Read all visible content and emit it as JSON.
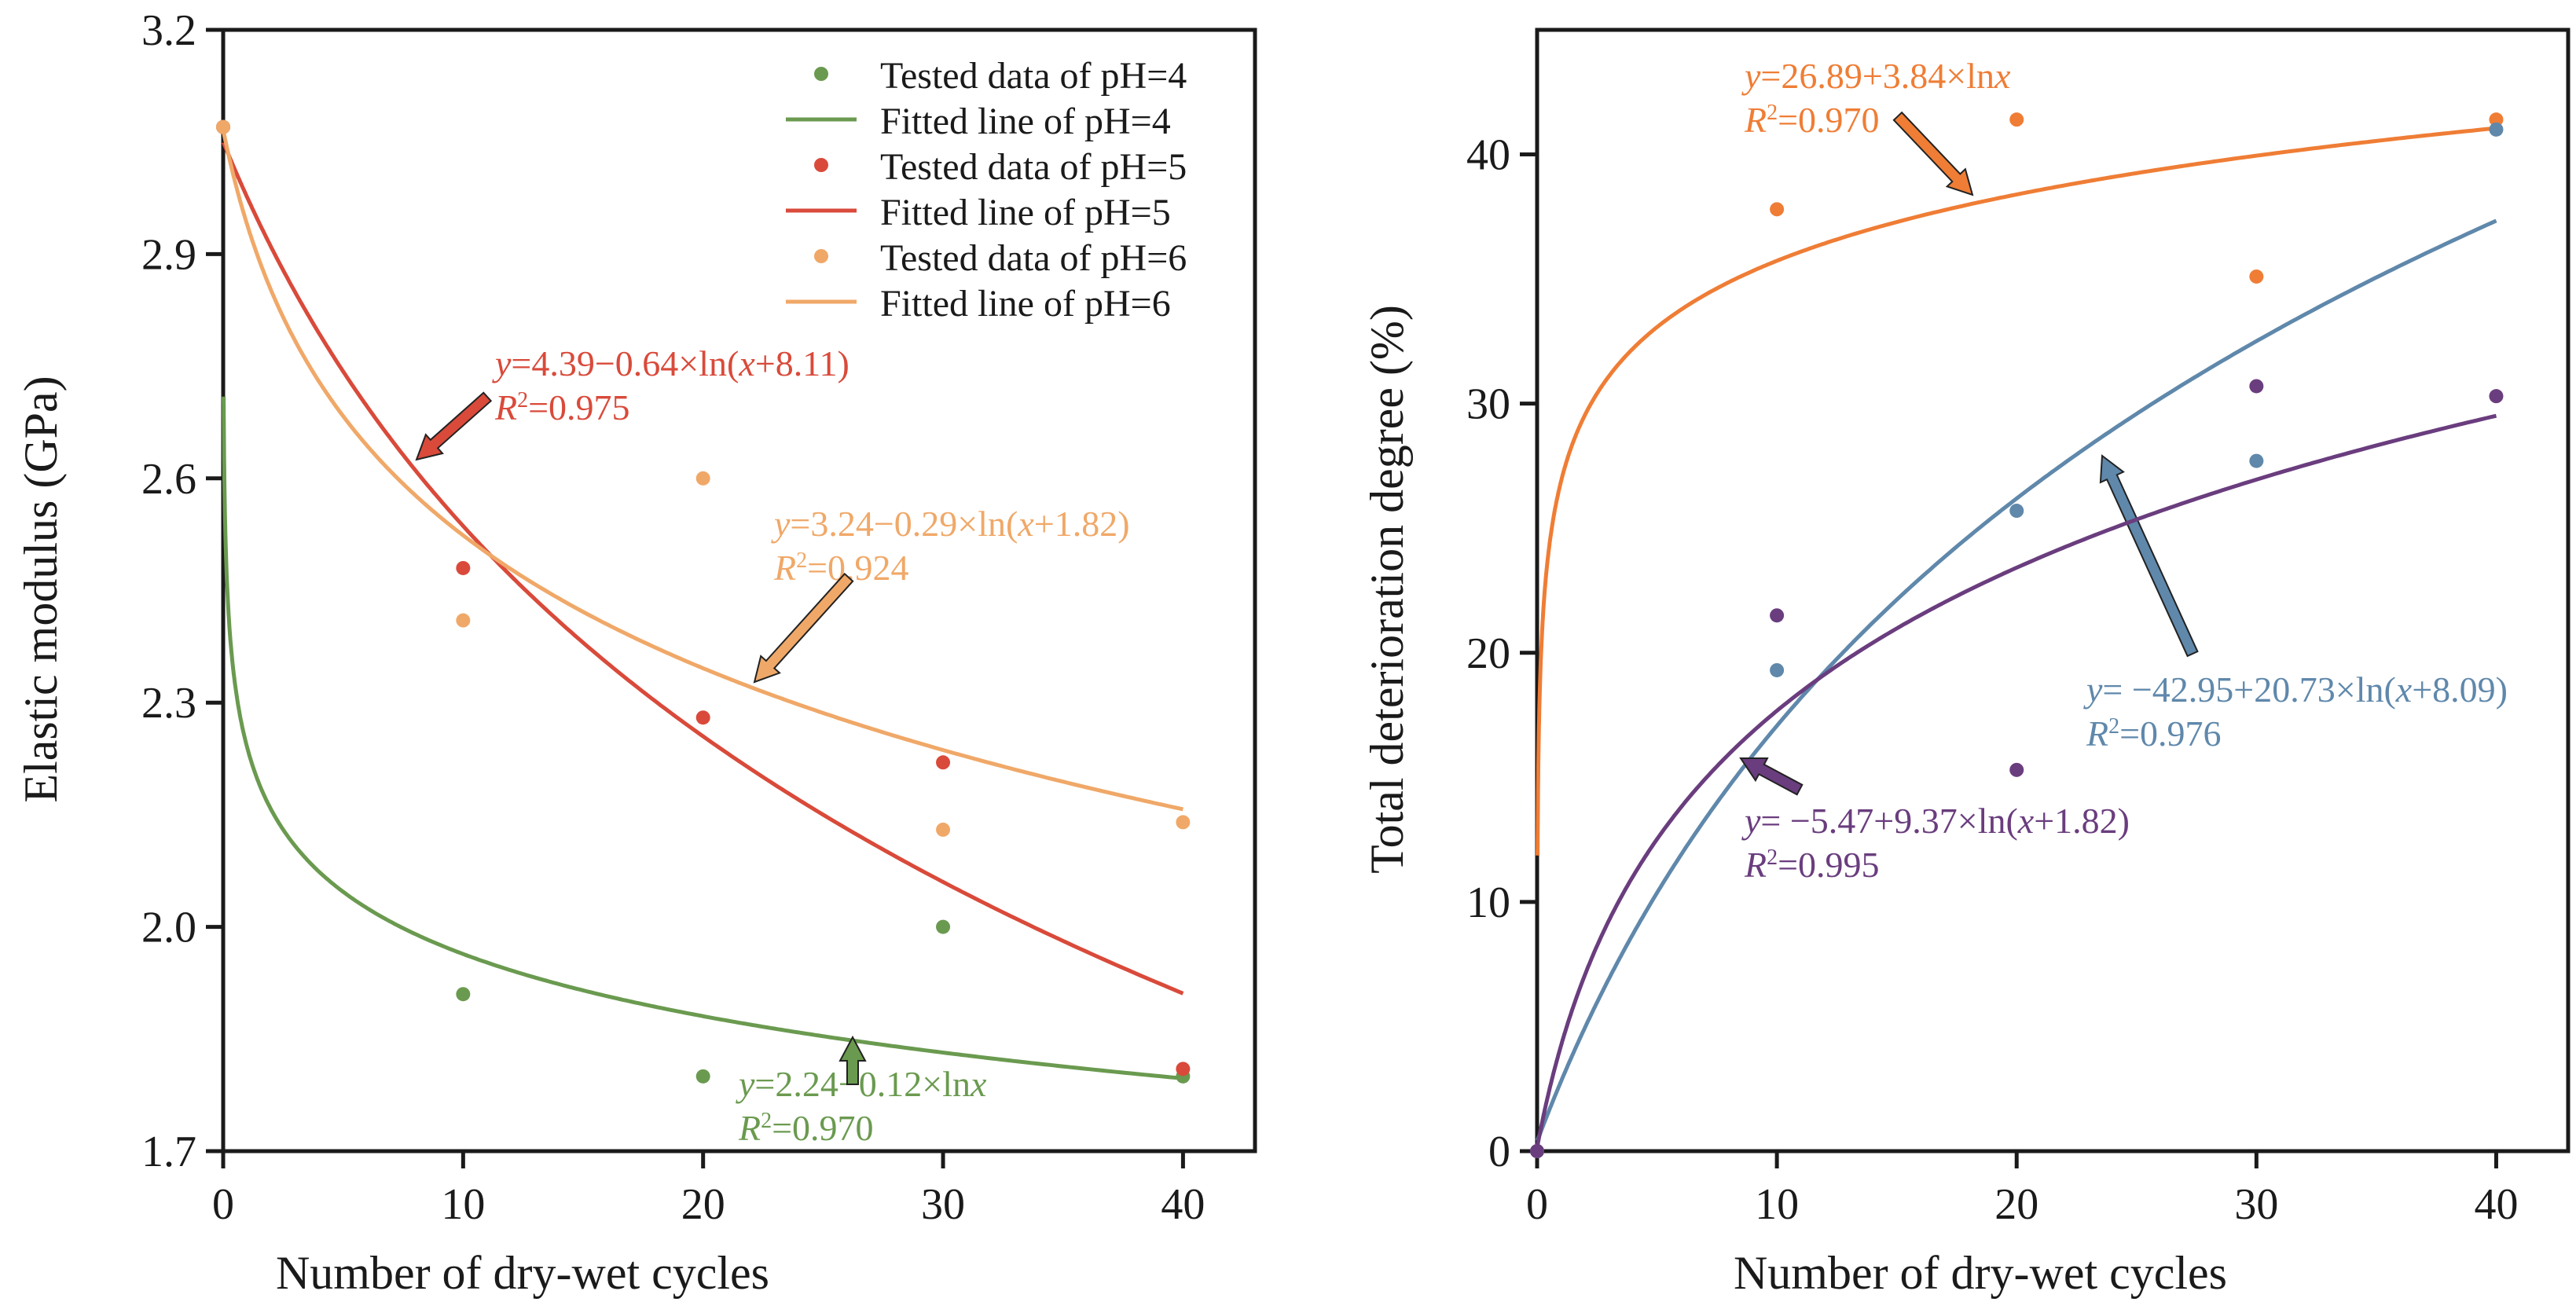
{
  "chart_data": [
    {
      "type": "scatter",
      "title": "",
      "xlabel": "Number of dry-wet cycles",
      "ylabel": "Elastic modulus (GPa)",
      "xlim": [
        0,
        43
      ],
      "ylim": [
        1.7,
        3.2
      ],
      "xticks": [
        0,
        10,
        20,
        30,
        40
      ],
      "yticks": [
        1.7,
        2.0,
        2.3,
        2.6,
        2.9,
        3.2
      ],
      "xtick_labels": [
        "0",
        "10",
        "20",
        "30",
        "40"
      ],
      "ytick_labels": [
        "1.7",
        "2.0",
        "2.3",
        "2.6",
        "2.9",
        "3.2"
      ],
      "grid": false,
      "legend_position": "top-right",
      "legend": [
        {
          "label": "Tested data of pH=4",
          "kind": "point",
          "color": "#6a9a4f"
        },
        {
          "label": "Fitted line of pH=4",
          "kind": "line",
          "color": "#6a9a4f"
        },
        {
          "label": "Tested data of pH=5",
          "kind": "point",
          "color": "#d94a3a"
        },
        {
          "label": "Fitted line of pH=5",
          "kind": "line",
          "color": "#d94a3a"
        },
        {
          "label": "Tested data of pH=6",
          "kind": "point",
          "color": "#f0a868"
        },
        {
          "label": "Fitted line of pH=6",
          "kind": "line",
          "color": "#f0a868"
        }
      ],
      "x": [
        0,
        10,
        20,
        30,
        40
      ],
      "series": [
        {
          "name": "pH=4",
          "color": "#6a9a4f",
          "values": [
            3.07,
            1.91,
            1.8,
            2.0,
            1.8
          ],
          "fit": {
            "model": "a-b*ln(x)",
            "a": 2.24,
            "b": 0.12,
            "c": 0
          },
          "equation": {
            "y_part": "y",
            "rest": "=2.24−0.12×ln",
            "x_part": "x",
            "tail": "",
            "r2_value": "=0.970"
          }
        },
        {
          "name": "pH=5",
          "color": "#d94a3a",
          "values": [
            3.07,
            2.48,
            2.28,
            2.22,
            1.81
          ],
          "fit": {
            "model": "a-b*ln(x+c)",
            "a": 4.39,
            "b": 0.64,
            "c": 8.11
          },
          "equation": {
            "y_part": "y",
            "rest": "=4.39−0.64×ln(",
            "x_part": "x",
            "tail": "+8.11)",
            "r2_value": "=0.975"
          }
        },
        {
          "name": "pH=6",
          "color": "#f0a868",
          "values": [
            3.07,
            2.41,
            2.6,
            2.13,
            2.14
          ],
          "fit": {
            "model": "a-b*ln(x+c)",
            "a": 3.24,
            "b": 0.29,
            "c": 1.82
          },
          "equation": {
            "y_part": "y",
            "rest": "=3.24−0.29×ln(",
            "x_part": "x",
            "tail": "+1.82)",
            "r2_value": "=0.924"
          }
        }
      ]
    },
    {
      "type": "scatter",
      "title": "",
      "xlabel": "Number of dry-wet cycles",
      "ylabel": "Total deterioration degree (%)",
      "xlim": [
        0,
        43
      ],
      "ylim": [
        0,
        45
      ],
      "xticks": [
        0,
        10,
        20,
        30,
        40
      ],
      "yticks": [
        0,
        10,
        20,
        30,
        40
      ],
      "xtick_labels": [
        "0",
        "10",
        "20",
        "30",
        "40"
      ],
      "ytick_labels": [
        "0",
        "10",
        "20",
        "30",
        "40"
      ],
      "grid": false,
      "x": [
        0,
        10,
        20,
        30,
        40
      ],
      "series": [
        {
          "name": "pH=4",
          "color": "#ef7d35",
          "values": [
            0,
            37.8,
            41.4,
            35.1,
            41.4
          ],
          "fit": {
            "model": "a+b*ln(x)",
            "a": 26.89,
            "b": 3.84,
            "c": 0
          },
          "equation": {
            "y_part": "y",
            "rest": "=26.89+3.84×ln",
            "x_part": "x",
            "tail": "",
            "r2_value": "=0.970"
          }
        },
        {
          "name": "pH=5",
          "color": "#5f88ab",
          "values": [
            0,
            19.3,
            25.7,
            27.7,
            41.0
          ],
          "fit": {
            "model": "a+b*ln(x+c)",
            "a": -42.95,
            "b": 20.73,
            "c": 8.09
          },
          "equation": {
            "y_part": "y",
            "rest": "= −42.95+20.73×ln(",
            "x_part": "x",
            "tail": "+8.09)",
            "r2_value": "=0.976"
          }
        },
        {
          "name": "pH=6",
          "color": "#6a3d7e",
          "values": [
            0,
            21.5,
            15.3,
            30.7,
            30.3
          ],
          "fit": {
            "model": "a+b*ln(x+c)",
            "a": -5.47,
            "b": 9.37,
            "c": 1.82
          },
          "equation": {
            "y_part": "y",
            "rest": "= −5.47+9.37×ln(",
            "x_part": "x",
            "tail": "+1.82)",
            "r2_value": "=0.995"
          }
        }
      ]
    }
  ]
}
